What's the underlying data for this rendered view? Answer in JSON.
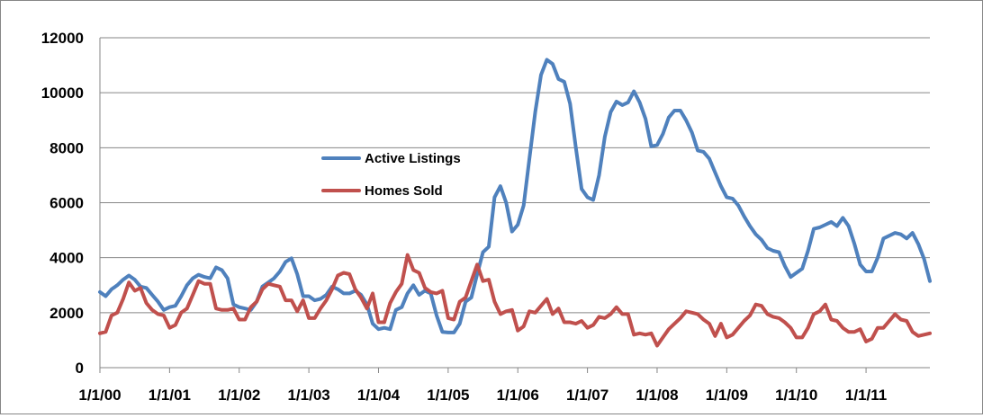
{
  "chart_data": {
    "type": "line",
    "title": "",
    "xlabel": "",
    "ylabel": "",
    "ylim": [
      0,
      12000
    ],
    "yticks": [
      0,
      2000,
      4000,
      6000,
      8000,
      10000,
      12000
    ],
    "grid": "horizontal",
    "legend_position": "center-left",
    "x_tick_labels": [
      "1/1/00",
      "1/1/01",
      "1/1/02",
      "1/1/03",
      "1/1/04",
      "1/1/05",
      "1/1/06",
      "1/1/07",
      "1/1/08",
      "1/1/09",
      "1/1/10",
      "1/1/11"
    ],
    "x": [
      "2000-01",
      "2000-02",
      "2000-03",
      "2000-04",
      "2000-05",
      "2000-06",
      "2000-07",
      "2000-08",
      "2000-09",
      "2000-10",
      "2000-11",
      "2000-12",
      "2001-01",
      "2001-02",
      "2001-03",
      "2001-04",
      "2001-05",
      "2001-06",
      "2001-07",
      "2001-08",
      "2001-09",
      "2001-10",
      "2001-11",
      "2001-12",
      "2002-01",
      "2002-02",
      "2002-03",
      "2002-04",
      "2002-05",
      "2002-06",
      "2002-07",
      "2002-08",
      "2002-09",
      "2002-10",
      "2002-11",
      "2002-12",
      "2003-01",
      "2003-02",
      "2003-03",
      "2003-04",
      "2003-05",
      "2003-06",
      "2003-07",
      "2003-08",
      "2003-09",
      "2003-10",
      "2003-11",
      "2003-12",
      "2004-01",
      "2004-02",
      "2004-03",
      "2004-04",
      "2004-05",
      "2004-06",
      "2004-07",
      "2004-08",
      "2004-09",
      "2004-10",
      "2004-11",
      "2004-12",
      "2005-01",
      "2005-02",
      "2005-03",
      "2005-04",
      "2005-05",
      "2005-06",
      "2005-07",
      "2005-08",
      "2005-09",
      "2005-10",
      "2005-11",
      "2005-12",
      "2006-01",
      "2006-02",
      "2006-03",
      "2006-04",
      "2006-05",
      "2006-06",
      "2006-07",
      "2006-08",
      "2006-09",
      "2006-10",
      "2006-11",
      "2006-12",
      "2007-01",
      "2007-02",
      "2007-03",
      "2007-04",
      "2007-05",
      "2007-06",
      "2007-07",
      "2007-08",
      "2007-09",
      "2007-10",
      "2007-11",
      "2007-12",
      "2008-01",
      "2008-02",
      "2008-03",
      "2008-04",
      "2008-05",
      "2008-06",
      "2008-07",
      "2008-08",
      "2008-09",
      "2008-10",
      "2008-11",
      "2008-12",
      "2009-01",
      "2009-02",
      "2009-03",
      "2009-04",
      "2009-05",
      "2009-06",
      "2009-07",
      "2009-08",
      "2009-09",
      "2009-10",
      "2009-11",
      "2009-12",
      "2010-01",
      "2010-02",
      "2010-03",
      "2010-04",
      "2010-05",
      "2010-06",
      "2010-07",
      "2010-08",
      "2010-09",
      "2010-10",
      "2010-11",
      "2010-12",
      "2011-01",
      "2011-02",
      "2011-03",
      "2011-04",
      "2011-05",
      "2011-06",
      "2011-07",
      "2011-08",
      "2011-09",
      "2011-10",
      "2011-11",
      "2011-12"
    ],
    "series": [
      {
        "name": "Active Listings",
        "color": "#4F81BD",
        "values": [
          2750,
          2600,
          2850,
          3000,
          3200,
          3350,
          3200,
          2950,
          2900,
          2650,
          2400,
          2100,
          2200,
          2250,
          2600,
          3000,
          3250,
          3380,
          3300,
          3250,
          3650,
          3550,
          3250,
          2300,
          2200,
          2150,
          2100,
          2400,
          2950,
          3100,
          3250,
          3500,
          3850,
          3980,
          3400,
          2600,
          2600,
          2450,
          2500,
          2650,
          2950,
          2850,
          2700,
          2700,
          2800,
          2650,
          2300,
          1600,
          1400,
          1450,
          1400,
          2100,
          2200,
          2700,
          3000,
          2650,
          2800,
          2700,
          1900,
          1300,
          1280,
          1280,
          1600,
          2400,
          2550,
          3400,
          4200,
          4400,
          6200,
          6600,
          6000,
          4950,
          5200,
          5900,
          7600,
          9300,
          10650,
          11200,
          11050,
          10500,
          10400,
          9600,
          8000,
          6500,
          6200,
          6100,
          7000,
          8400,
          9300,
          9680,
          9550,
          9650,
          10050,
          9650,
          9050,
          8050,
          8100,
          8500,
          9100,
          9350,
          9350,
          9000,
          8550,
          7900,
          7850,
          7600,
          7100,
          6600,
          6200,
          6150,
          5900,
          5500,
          5150,
          4850,
          4650,
          4350,
          4250,
          4200,
          3700,
          3300,
          3450,
          3600,
          4250,
          5050,
          5100,
          5200,
          5300,
          5150,
          5450,
          5150,
          4500,
          3750,
          3500,
          3500,
          4000,
          4700,
          4800,
          4900,
          4850,
          4700,
          4900,
          4500,
          3950,
          3150
        ]
      },
      {
        "name": "Homes Sold",
        "color": "#C0504D",
        "values": [
          1250,
          1300,
          1900,
          2000,
          2500,
          3100,
          2800,
          2900,
          2350,
          2100,
          1950,
          1900,
          1450,
          1550,
          2000,
          2150,
          2650,
          3150,
          3050,
          3050,
          2150,
          2100,
          2100,
          2150,
          1750,
          1750,
          2200,
          2400,
          2850,
          3050,
          3000,
          2950,
          2450,
          2450,
          2050,
          2450,
          1800,
          1800,
          2150,
          2450,
          2850,
          3350,
          3450,
          3400,
          2850,
          2550,
          2150,
          2700,
          1650,
          1650,
          2350,
          2750,
          3050,
          4100,
          3550,
          3450,
          2900,
          2750,
          2700,
          2800,
          1800,
          1750,
          2400,
          2550,
          3150,
          3750,
          3150,
          3200,
          2400,
          1950,
          2050,
          2100,
          1350,
          1500,
          2050,
          2000,
          2250,
          2500,
          1950,
          2150,
          1650,
          1650,
          1600,
          1700,
          1450,
          1550,
          1850,
          1800,
          1950,
          2200,
          1950,
          1950,
          1200,
          1250,
          1200,
          1250,
          800,
          1100,
          1400,
          1600,
          1800,
          2050,
          2000,
          1950,
          1750,
          1600,
          1150,
          1600,
          1100,
          1200,
          1450,
          1700,
          1900,
          2300,
          2250,
          1950,
          1850,
          1800,
          1650,
          1450,
          1100,
          1100,
          1450,
          1950,
          2050,
          2300,
          1750,
          1700,
          1450,
          1300,
          1300,
          1400,
          950,
          1050,
          1450,
          1450,
          1700,
          1950,
          1750,
          1700,
          1300,
          1150,
          1200,
          1250
        ]
      }
    ]
  }
}
